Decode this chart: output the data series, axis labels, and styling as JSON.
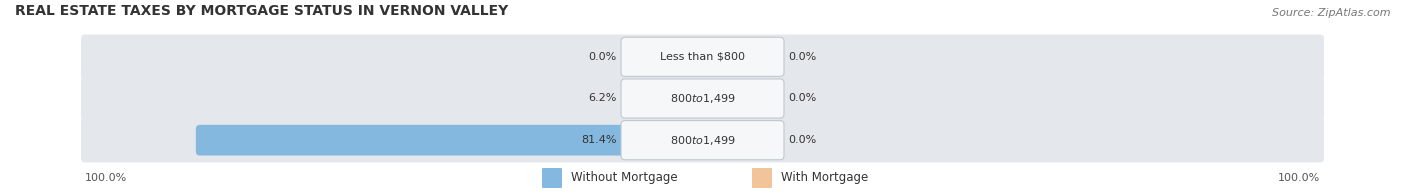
{
  "title": "REAL ESTATE TAXES BY MORTGAGE STATUS IN VERNON VALLEY",
  "source": "Source: ZipAtlas.com",
  "rows": [
    {
      "label": "Less than $800",
      "without_mortgage": 0.0,
      "with_mortgage": 0.0
    },
    {
      "label": "$800 to $1,499",
      "without_mortgage": 6.2,
      "with_mortgage": 0.0
    },
    {
      "label": "$800 to $1,499",
      "without_mortgage": 81.4,
      "with_mortgage": 0.0
    }
  ],
  "left_axis_label": "100.0%",
  "right_axis_label": "100.0%",
  "color_without": "#85b8de",
  "color_with": "#f2c49a",
  "bar_bg_color": "#e4e8ec",
  "title_fontsize": 10,
  "source_fontsize": 8,
  "label_fontsize": 8,
  "row_label_fontsize": 8,
  "legend_fontsize": 8.5,
  "axis_label_fontsize": 8,
  "fig_bg_color": "#ffffff"
}
